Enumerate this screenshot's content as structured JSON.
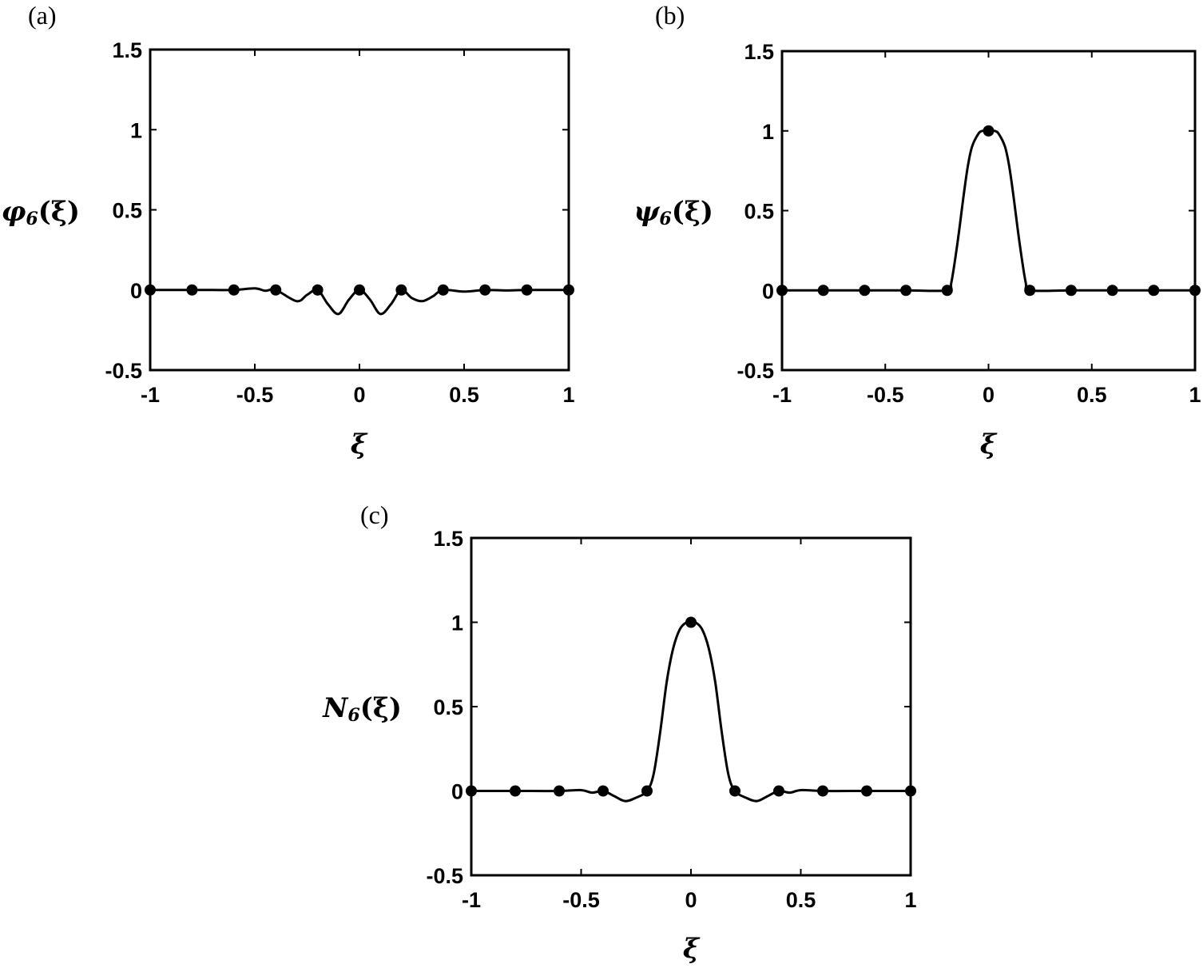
{
  "colors": {
    "line": "#000000",
    "marker": "#000000",
    "background": "#ffffff"
  },
  "chart_data": [
    {
      "panel_label": "(a)",
      "type": "line",
      "ylabel": "φ6(ξ)",
      "xlabel": "ξ",
      "xlim": [
        -1,
        1
      ],
      "ylim": [
        -0.5,
        1.5
      ],
      "xticks": [
        -1,
        -0.5,
        0,
        0.5,
        1
      ],
      "xtick_labels": [
        "-1",
        "-0.5",
        "0",
        "0.5",
        "1"
      ],
      "yticks": [
        -0.5,
        0,
        0.5,
        1,
        1.5
      ],
      "ytick_labels": [
        "-0.5",
        "0",
        "0.5",
        "1",
        "1.5"
      ],
      "grid": false,
      "series": [
        {
          "x": [
            -1,
            -0.9,
            -0.8,
            -0.7,
            -0.6,
            -0.5,
            -0.45,
            -0.4,
            -0.3,
            -0.25,
            -0.2,
            -0.15,
            -0.1,
            -0.05,
            0,
            0.05,
            0.1,
            0.15,
            0.2,
            0.25,
            0.3,
            0.35,
            0.4,
            0.5,
            0.6,
            0.7,
            0.8,
            0.9,
            1
          ],
          "y": [
            0,
            0,
            0,
            0,
            0,
            0.01,
            -0.005,
            0,
            -0.07,
            -0.03,
            0,
            -0.09,
            -0.15,
            -0.06,
            0,
            -0.06,
            -0.15,
            -0.09,
            0,
            -0.05,
            -0.07,
            -0.04,
            0,
            -0.01,
            0,
            -0.003,
            0,
            0,
            0
          ]
        }
      ],
      "markers": {
        "x": [
          -1,
          -0.8,
          -0.6,
          -0.4,
          -0.2,
          0,
          0.2,
          0.4,
          0.6,
          0.8,
          1
        ],
        "y": [
          0,
          0,
          0,
          0,
          0,
          0,
          0,
          0,
          0,
          0,
          0
        ]
      }
    },
    {
      "panel_label": "(b)",
      "type": "line",
      "ylabel": "ψ6(ξ)",
      "xlabel": "ξ",
      "xlim": [
        -1,
        1
      ],
      "ylim": [
        -0.5,
        1.5
      ],
      "xticks": [
        -1,
        -0.5,
        0,
        0.5,
        1
      ],
      "xtick_labels": [
        "-1",
        "-0.5",
        "0",
        "0.5",
        "1"
      ],
      "yticks": [
        -0.5,
        0,
        0.5,
        1,
        1.5
      ],
      "ytick_labels": [
        "-0.5",
        "0",
        "0.5",
        "1",
        "1.5"
      ],
      "grid": false,
      "series": [
        {
          "x": [
            -1,
            -0.8,
            -0.6,
            -0.4,
            -0.2,
            -0.18,
            -0.15,
            -0.12,
            -0.1,
            -0.08,
            -0.05,
            -0.03,
            0,
            0.03,
            0.05,
            0.08,
            0.1,
            0.12,
            0.15,
            0.18,
            0.2,
            0.4,
            0.6,
            0.8,
            1
          ],
          "y": [
            0,
            0,
            0,
            0,
            0,
            0.05,
            0.3,
            0.6,
            0.78,
            0.9,
            0.98,
            1.0,
            1.0,
            1.0,
            0.98,
            0.9,
            0.78,
            0.6,
            0.3,
            0.05,
            0,
            0,
            0,
            0,
            0
          ]
        }
      ],
      "markers": {
        "x": [
          -1,
          -0.8,
          -0.6,
          -0.4,
          -0.2,
          0,
          0.2,
          0.4,
          0.6,
          0.8,
          1
        ],
        "y": [
          0,
          0,
          0,
          0,
          0,
          1,
          0,
          0,
          0,
          0,
          0
        ]
      }
    },
    {
      "panel_label": "(c)",
      "type": "line",
      "ylabel": "N6(ξ)",
      "xlabel": "ξ",
      "xlim": [
        -1,
        1
      ],
      "ylim": [
        -0.5,
        1.5
      ],
      "xticks": [
        -1,
        -0.5,
        0,
        0.5,
        1
      ],
      "xtick_labels": [
        "-1",
        "-0.5",
        "0",
        "0.5",
        "1"
      ],
      "yticks": [
        -0.5,
        0,
        0.5,
        1,
        1.5
      ],
      "ytick_labels": [
        "-0.5",
        "0",
        "0.5",
        "1",
        "1.5"
      ],
      "grid": false,
      "series": [
        {
          "x": [
            -1,
            -0.8,
            -0.6,
            -0.5,
            -0.45,
            -0.4,
            -0.35,
            -0.3,
            -0.25,
            -0.2,
            -0.17,
            -0.14,
            -0.11,
            -0.08,
            -0.05,
            -0.02,
            0,
            0.02,
            0.05,
            0.08,
            0.11,
            0.14,
            0.17,
            0.2,
            0.25,
            0.3,
            0.35,
            0.4,
            0.45,
            0.5,
            0.6,
            0.8,
            1
          ],
          "y": [
            0,
            0,
            0,
            0.005,
            -0.01,
            0,
            -0.03,
            -0.06,
            -0.04,
            0,
            0.1,
            0.35,
            0.65,
            0.85,
            0.96,
            1.0,
            1.0,
            1.0,
            0.96,
            0.85,
            0.65,
            0.35,
            0.1,
            0,
            -0.04,
            -0.06,
            -0.03,
            0,
            -0.01,
            0.005,
            0,
            0,
            0
          ]
        }
      ],
      "markers": {
        "x": [
          -1,
          -0.8,
          -0.6,
          -0.4,
          -0.2,
          0,
          0.2,
          0.4,
          0.6,
          0.8,
          1
        ],
        "y": [
          0,
          0,
          0,
          0,
          0,
          1,
          0,
          0,
          0,
          0,
          0
        ]
      }
    }
  ],
  "panels": [
    {
      "label": "(a)",
      "ylabel_main": "φ",
      "ylabel_sub": "6",
      "ylabel_arg": "(ξ)",
      "xlabel": "ξ"
    },
    {
      "label": "(b)",
      "ylabel_main": "ψ",
      "ylabel_sub": "6",
      "ylabel_arg": "(ξ)",
      "xlabel": "ξ"
    },
    {
      "label": "(c)",
      "ylabel_main": "N",
      "ylabel_sub": "6",
      "ylabel_arg": "(ξ)",
      "xlabel": "ξ"
    }
  ]
}
